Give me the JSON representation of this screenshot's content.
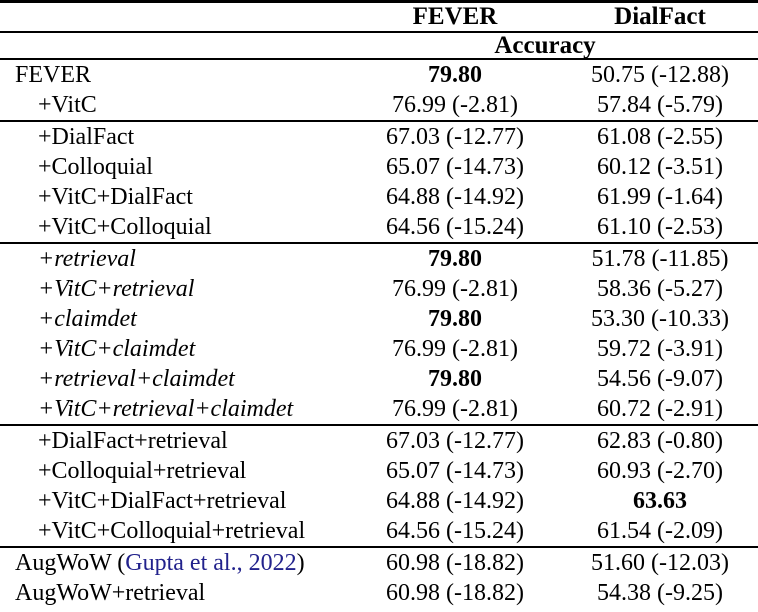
{
  "table": {
    "columns": {
      "fever": "FEVER",
      "dialfact": "DialFact"
    },
    "subheader": "Accuracy",
    "rows": [
      {
        "label": "FEVER",
        "fever": "79.80",
        "dialfact": "50.75 (-12.88)"
      },
      {
        "label": "+VitC",
        "fever": "76.99 (-2.81)",
        "dialfact": "57.84 (-5.79)"
      },
      {
        "label": "+DialFact",
        "fever": "67.03 (-12.77)",
        "dialfact": "61.08 (-2.55)"
      },
      {
        "label": "+Colloquial",
        "fever": "65.07 (-14.73)",
        "dialfact": "60.12 (-3.51)"
      },
      {
        "label": "+VitC+DialFact",
        "fever": "64.88 (-14.92)",
        "dialfact": "61.99 (-1.64)"
      },
      {
        "label": "+VitC+Colloquial",
        "fever": "64.56 (-15.24)",
        "dialfact": "61.10 (-2.53)"
      },
      {
        "label": "+retrieval",
        "fever": "79.80",
        "dialfact": "51.78 (-11.85)"
      },
      {
        "label": "+VitC+retrieval",
        "fever": "76.99 (-2.81)",
        "dialfact": "58.36 (-5.27)"
      },
      {
        "label": "+claimdet",
        "fever": "79.80",
        "dialfact": "53.30 (-10.33)"
      },
      {
        "label": "+VitC+claimdet",
        "fever": "76.99 (-2.81)",
        "dialfact": "59.72 (-3.91)"
      },
      {
        "label": "+retrieval+claimdet",
        "fever": "79.80",
        "dialfact": "54.56 (-9.07)"
      },
      {
        "label": "+VitC+retrieval+claimdet",
        "fever": "76.99 (-2.81)",
        "dialfact": "60.72 (-2.91)"
      },
      {
        "label": "+DialFact+retrieval",
        "fever": "67.03 (-12.77)",
        "dialfact": "62.83 (-0.80)"
      },
      {
        "label": "+Colloquial+retrieval",
        "fever": "65.07 (-14.73)",
        "dialfact": "60.93 (-2.70)"
      },
      {
        "label": "+VitC+DialFact+retrieval",
        "fever": "64.88 (-14.92)",
        "dialfact": "63.63"
      },
      {
        "label": "+VitC+Colloquial+retrieval",
        "fever": "64.56 (-15.24)",
        "dialfact": "61.54 (-2.09)"
      },
      {
        "label_prefix": "AugWoW (",
        "citation": "Gupta et al., 2022",
        "label_suffix": ")",
        "fever": "60.98 (-18.82)",
        "dialfact": "51.60 (-12.03)"
      },
      {
        "label": "AugWoW+retrieval",
        "fever": "60.98 (-18.82)",
        "dialfact": "54.38 (-9.25)"
      }
    ],
    "colors": {
      "text": "#000000",
      "rules": "#000000",
      "citation_link": "#22228c"
    }
  }
}
